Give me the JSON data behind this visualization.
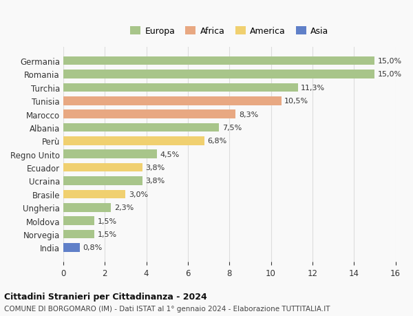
{
  "categories": [
    "Germania",
    "Romania",
    "Turchia",
    "Tunisia",
    "Marocco",
    "Albania",
    "Perù",
    "Regno Unito",
    "Ecuador",
    "Ucraina",
    "Brasile",
    "Ungheria",
    "Moldova",
    "Norvegia",
    "India"
  ],
  "values": [
    15.0,
    15.0,
    11.3,
    10.5,
    8.3,
    7.5,
    6.8,
    4.5,
    3.8,
    3.8,
    3.0,
    2.3,
    1.5,
    1.5,
    0.8
  ],
  "labels": [
    "15,0%",
    "15,0%",
    "11,3%",
    "10,5%",
    "8,3%",
    "7,5%",
    "6,8%",
    "4,5%",
    "3,8%",
    "3,8%",
    "3,0%",
    "2,3%",
    "1,5%",
    "1,5%",
    "0,8%"
  ],
  "continents": [
    "Europa",
    "Europa",
    "Europa",
    "Africa",
    "Africa",
    "Europa",
    "America",
    "Europa",
    "America",
    "Europa",
    "America",
    "Europa",
    "Europa",
    "Europa",
    "Asia"
  ],
  "colors": {
    "Europa": "#a8c58a",
    "Africa": "#e8a882",
    "America": "#f0d070",
    "Asia": "#6080c8"
  },
  "legend_order": [
    "Europa",
    "Africa",
    "America",
    "Asia"
  ],
  "title": "Cittadini Stranieri per Cittadinanza - 2024",
  "subtitle": "COMUNE DI BORGOMARO (IM) - Dati ISTAT al 1° gennaio 2024 - Elaborazione TUTTITALIA.IT",
  "xlim": [
    0,
    16
  ],
  "xticks": [
    0,
    2,
    4,
    6,
    8,
    10,
    12,
    14,
    16
  ],
  "background_color": "#f9f9f9",
  "grid_color": "#dddddd"
}
